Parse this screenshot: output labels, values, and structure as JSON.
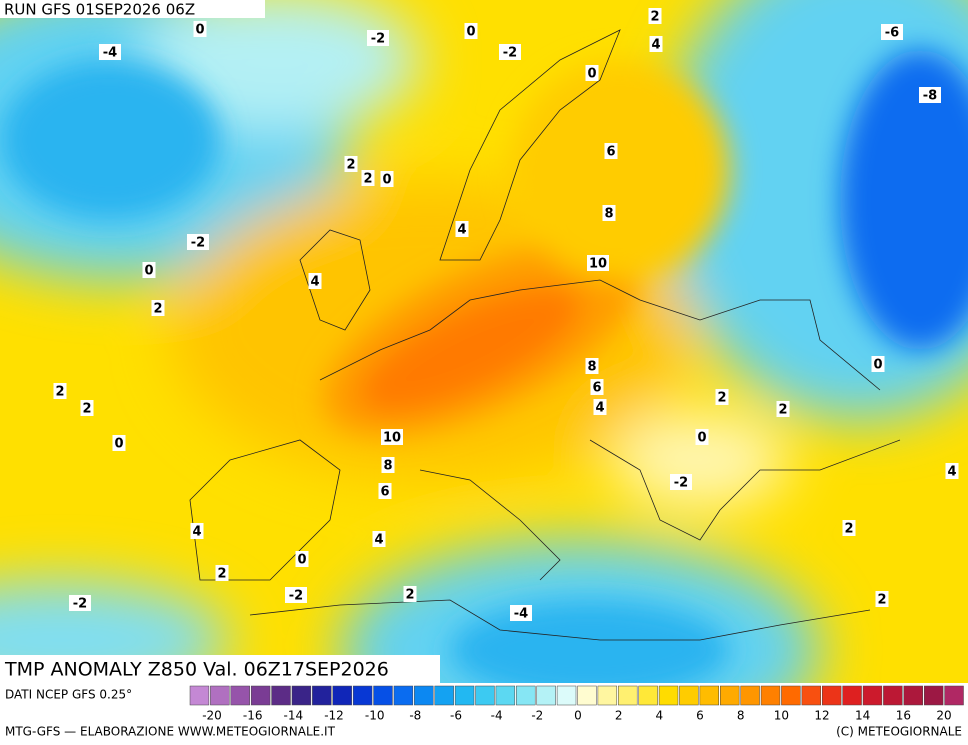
{
  "header": {
    "run": "RUN GFS 01SEP2026 06Z"
  },
  "title": "TMP ANOMALY Z850 Val. 06Z17SEP2026",
  "source": "DATI NCEP GFS 0.25°",
  "credit": "MTG-GFS — ELABORAZIONE WWW.METEOGIORNALE.IT",
  "copyright": "(C) METEOGIORNALE",
  "contour_labels": [
    -4,
    0,
    -2,
    0,
    -2,
    2,
    4,
    0,
    -6,
    -8,
    2,
    2,
    0,
    6,
    4,
    8,
    -2,
    0,
    4,
    10,
    2,
    0,
    8,
    6,
    4,
    2,
    2,
    2,
    2,
    0,
    0,
    10,
    8,
    6,
    -2,
    4,
    4,
    4,
    2,
    0,
    2,
    -2,
    -2,
    2,
    2,
    -4
  ],
  "scale": {
    "colors": [
      "#c488d4",
      "#b070c0",
      "#9654aa",
      "#7a3c94",
      "#5c2c86",
      "#3a2488",
      "#22229c",
      "#1026b8",
      "#0838d4",
      "#0650e6",
      "#0a6cf0",
      "#0c88f2",
      "#14a2f2",
      "#22b8f2",
      "#3ccaf2",
      "#5cd8f2",
      "#86e6f4",
      "#b4f2f6",
      "#dcfbfa",
      "#fffcd0",
      "#fff6a0",
      "#fff070",
      "#ffe838",
      "#ffdc00",
      "#ffcc00",
      "#ffbc00",
      "#ffaa00",
      "#ff9600",
      "#ff8000",
      "#ff6a00",
      "#f85010",
      "#ec3418",
      "#de2020",
      "#cc1a2c",
      "#bc1834",
      "#ac183c",
      "#9c1844",
      "#b02864"
    ],
    "ticks": [
      -20,
      -16,
      -14,
      -12,
      -10,
      -8,
      -6,
      -4,
      -2,
      0,
      2,
      4,
      6,
      8,
      10,
      12,
      14,
      16,
      20
    ]
  }
}
